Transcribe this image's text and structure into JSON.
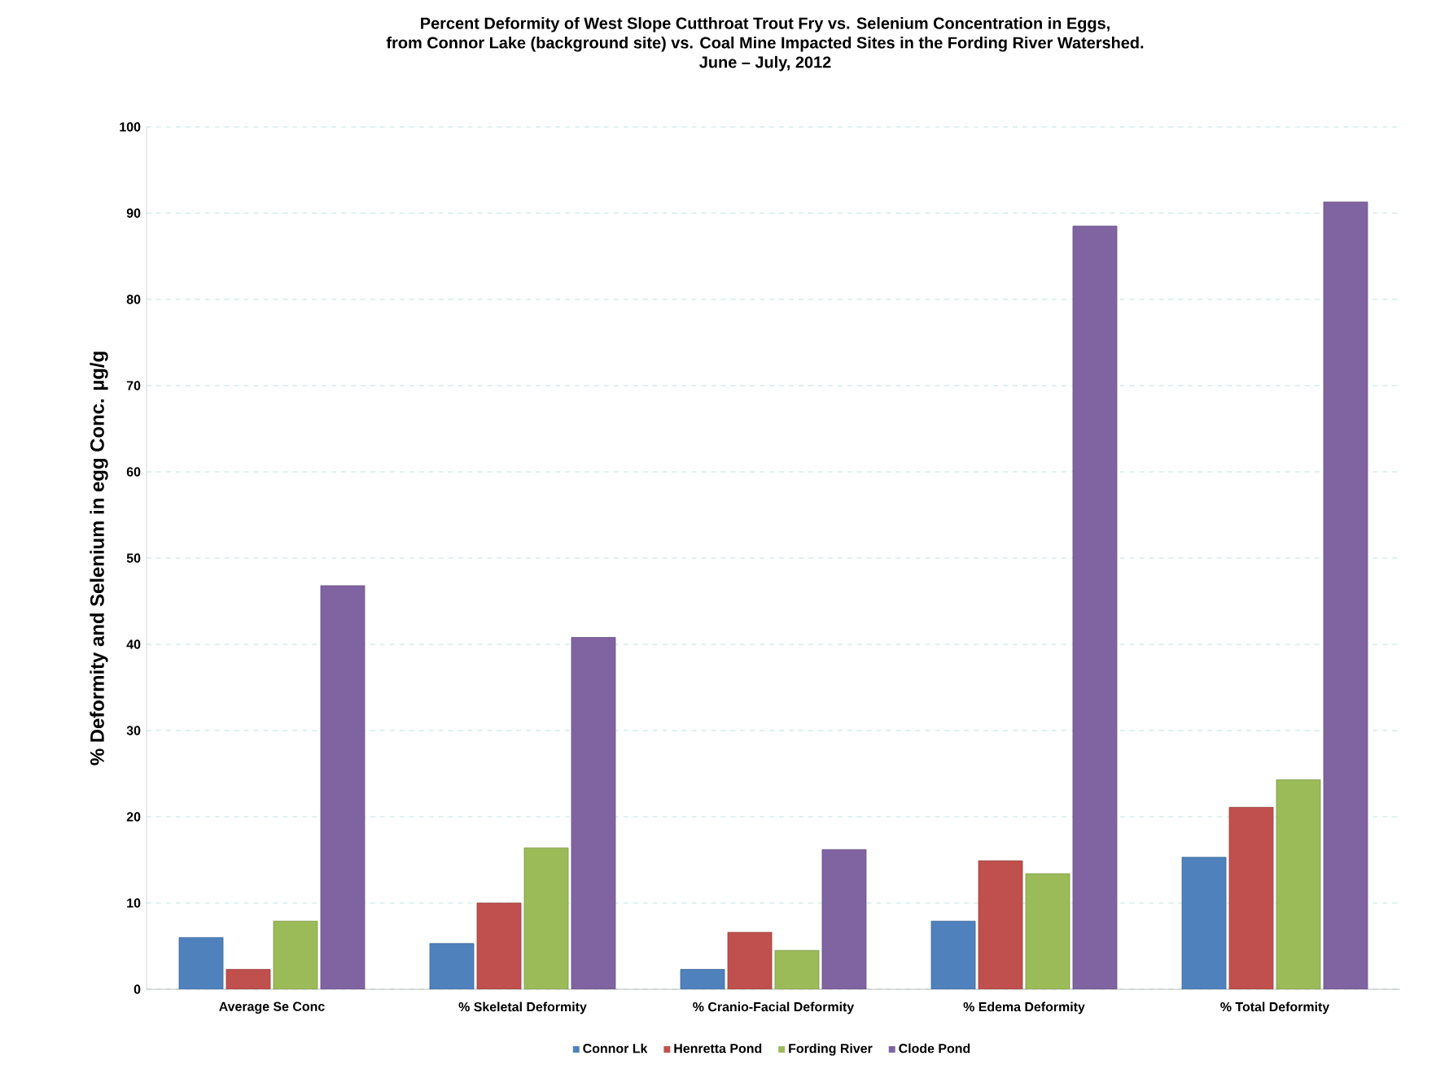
{
  "chart_data": {
    "type": "bar",
    "title": "Percent Deformity of West Slope Cutthroat Trout Fry vs. Selenium Concentration in Eggs,\nfrom Connor Lake (background site) vs. Coal Mine Impacted Sites in the Fording River Watershed.\nJune – July, 2012",
    "ylabel": "% Deformity and Selenium in egg Conc. µg/g",
    "categories": [
      "Average Se Conc",
      "% Skeletal Deformity",
      "% Cranio-Facial Deformity",
      "% Edema Deformity",
      "% Total Deformity"
    ],
    "series": [
      {
        "name": "Connor Lk",
        "color": "#4f81bd",
        "values": [
          6,
          5.3,
          2.3,
          7.9,
          15.3
        ]
      },
      {
        "name": "Henretta Pond",
        "color": "#c0504d",
        "values": [
          2.3,
          10,
          6.6,
          14.9,
          21.1
        ]
      },
      {
        "name": "Fording River",
        "color": "#9bbb59",
        "values": [
          7.9,
          16.4,
          4.5,
          13.4,
          24.3
        ]
      },
      {
        "name": "Clode Pond",
        "color": "#8064a2",
        "values": [
          46.8,
          40.8,
          16.2,
          88.5,
          91.3
        ]
      }
    ],
    "ylim": [
      0,
      100
    ],
    "yticks": [
      0,
      10,
      20,
      30,
      40,
      50,
      60,
      70,
      80,
      90,
      100
    ],
    "grid": "y",
    "legend": "bottom"
  }
}
